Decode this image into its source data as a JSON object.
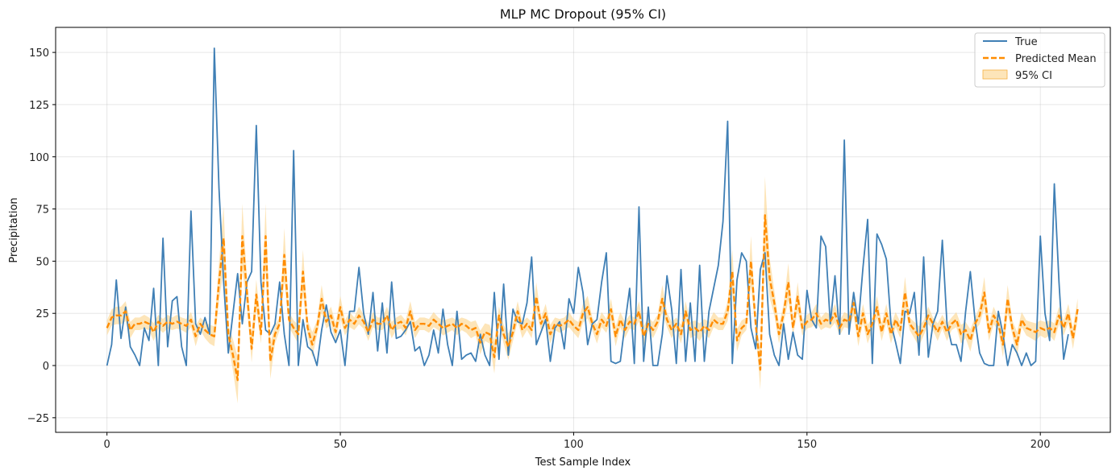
{
  "chart_data": {
    "type": "line",
    "title": "MLP MC Dropout (95% CI)",
    "xlabel": "Test Sample Index",
    "ylabel": "Precipitation",
    "xlim": [
      -11,
      215
    ],
    "ylim": [
      -32,
      162
    ],
    "xticks": [
      0,
      50,
      100,
      150,
      200
    ],
    "yticks": [
      -25,
      0,
      25,
      50,
      75,
      100,
      125,
      150
    ],
    "grid": true,
    "legend_position": "top-right",
    "colors": {
      "true": "#3f7fb5",
      "mean": "#ff8c00",
      "ci": "#fcd48a"
    },
    "legend": {
      "true_label": "True",
      "mean_label": "Predicted Mean",
      "ci_label": "95% CI"
    },
    "true_values": [
      0,
      10,
      41,
      13,
      28,
      9,
      5,
      0,
      18,
      12,
      37,
      0,
      61,
      9,
      31,
      33,
      9,
      0,
      74,
      20,
      15,
      23,
      15,
      152,
      85,
      40,
      6,
      25,
      44,
      20,
      40,
      45,
      115,
      40,
      17,
      15,
      20,
      40,
      15,
      0,
      103,
      0,
      22,
      9,
      7,
      0,
      17,
      29,
      16,
      11,
      17,
      0,
      26,
      26,
      47,
      25,
      15,
      35,
      7,
      30,
      6,
      40,
      13,
      14,
      17,
      21,
      7,
      9,
      0,
      5,
      17,
      6,
      27,
      10,
      0,
      26,
      3,
      5,
      6,
      2,
      15,
      5,
      0,
      35,
      3,
      39,
      5,
      27,
      21,
      20,
      30,
      52,
      10,
      16,
      22,
      2,
      18,
      21,
      8,
      32,
      25,
      47,
      35,
      10,
      20,
      22,
      40,
      54,
      2,
      1,
      2,
      20,
      37,
      1,
      76,
      2,
      28,
      0,
      0,
      15,
      43,
      27,
      1,
      46,
      2,
      30,
      2,
      48,
      2,
      26,
      37,
      48,
      69,
      117,
      1,
      41,
      54,
      50,
      18,
      8,
      46,
      54,
      15,
      5,
      0,
      20,
      3,
      16,
      5,
      3,
      36,
      22,
      18,
      62,
      57,
      20,
      43,
      15,
      108,
      15,
      35,
      20,
      47,
      70,
      1,
      63,
      58,
      51,
      20,
      11,
      1,
      26,
      25,
      35,
      5,
      52,
      4,
      20,
      26,
      60,
      20,
      10,
      10,
      2,
      26,
      45,
      22,
      6,
      1,
      0,
      0,
      26,
      15,
      0,
      10,
      6,
      0,
      6,
      0,
      2,
      62,
      25,
      12,
      87,
      40,
      3,
      15
    ],
    "mean_values": [
      18,
      23,
      24,
      24,
      26,
      17,
      20,
      20,
      21,
      20,
      16,
      21,
      19,
      21,
      20,
      21,
      20,
      19,
      22,
      14,
      20,
      17,
      15,
      14,
      40,
      61,
      15,
      5,
      -7,
      62,
      35,
      8,
      34,
      15,
      62,
      2,
      15,
      20,
      53,
      22,
      18,
      15,
      45,
      18,
      10,
      18,
      32,
      21,
      24,
      16,
      28,
      18,
      22,
      20,
      24,
      21,
      16,
      22,
      20,
      20,
      24,
      17,
      20,
      21,
      18,
      26,
      17,
      20,
      20,
      19,
      22,
      20,
      18,
      19,
      20,
      18,
      20,
      19,
      17,
      18,
      11,
      16,
      15,
      4,
      24,
      15,
      9,
      16,
      26,
      17,
      20,
      17,
      33,
      20,
      25,
      15,
      20,
      19,
      20,
      22,
      19,
      17,
      25,
      28,
      20,
      15,
      22,
      19,
      27,
      14,
      22,
      17,
      21,
      20,
      26,
      14,
      20,
      17,
      21,
      32,
      22,
      17,
      20,
      15,
      26,
      17,
      18,
      16,
      19,
      17,
      22,
      20,
      20,
      26,
      45,
      12,
      18,
      20,
      50,
      20,
      -2,
      72,
      42,
      30,
      15,
      25,
      40,
      18,
      33,
      18,
      21,
      22,
      25,
      20,
      22,
      21,
      25,
      18,
      22,
      21,
      30,
      14,
      25,
      15,
      20,
      28,
      16,
      25,
      15,
      22,
      17,
      35,
      20,
      17,
      14,
      18,
      24,
      20,
      16,
      21,
      16,
      20,
      22,
      15,
      17,
      12,
      20,
      24,
      35,
      16,
      24,
      20,
      10,
      32,
      18,
      10,
      22,
      18,
      17,
      16,
      18,
      17,
      18,
      16,
      24,
      18,
      25,
      13,
      27
    ]
  }
}
